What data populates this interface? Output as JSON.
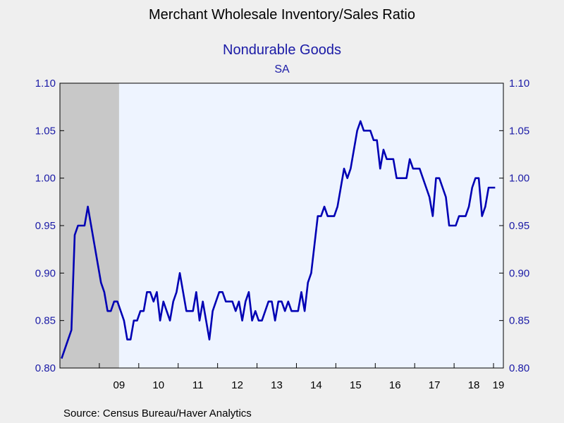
{
  "header": {
    "title": "Merchant Wholesale Inventory/Sales Ratio",
    "subtitle": "Nondurable Goods",
    "note": "SA"
  },
  "footer": {
    "source": "Source:  Census Bureau/Haver Analytics"
  },
  "colors": {
    "line": "#0000b4",
    "plot_background": "#eef4ff",
    "recession_shade": "#c8c8c8",
    "tick_label": "#1a1aa6"
  },
  "chart_data": {
    "type": "line",
    "title": "Merchant Wholesale Inventory/Sales Ratio",
    "subtitle": "Nondurable Goods",
    "note": "SA",
    "xlabel": "",
    "ylabel": "",
    "ylim": [
      0.8,
      1.1
    ],
    "y_ticks": [
      "0.80",
      "0.85",
      "0.90",
      "0.95",
      "1.00",
      "1.05",
      "1.10"
    ],
    "y_tick_values": [
      0.8,
      0.85,
      0.9,
      0.95,
      1.0,
      1.05,
      1.1
    ],
    "x_tick_labels": [
      "09",
      "10",
      "11",
      "12",
      "13",
      "14",
      "15",
      "16",
      "17",
      "18",
      "19"
    ],
    "x_range": [
      "2008-01",
      "2019-03"
    ],
    "grid": false,
    "secondary_y_axis": true,
    "shaded_regions": [
      {
        "label": "recession",
        "start": "2008-01",
        "end": "2009-06"
      }
    ],
    "series": [
      {
        "start": "2008-01",
        "frequency": "monthly",
        "values": [
          0.81,
          0.82,
          0.83,
          0.84,
          0.94,
          0.95,
          0.95,
          0.95,
          0.97,
          0.95,
          0.93,
          0.91,
          0.89,
          0.88,
          0.86,
          0.86,
          0.87,
          0.87,
          0.86,
          0.85,
          0.83,
          0.83,
          0.85,
          0.85,
          0.86,
          0.86,
          0.88,
          0.88,
          0.87,
          0.88,
          0.85,
          0.87,
          0.86,
          0.85,
          0.87,
          0.88,
          0.9,
          0.88,
          0.86,
          0.86,
          0.86,
          0.88,
          0.85,
          0.87,
          0.85,
          0.83,
          0.86,
          0.87,
          0.88,
          0.88,
          0.87,
          0.87,
          0.87,
          0.86,
          0.87,
          0.85,
          0.87,
          0.88,
          0.85,
          0.86,
          0.85,
          0.85,
          0.86,
          0.87,
          0.87,
          0.85,
          0.87,
          0.87,
          0.86,
          0.87,
          0.86,
          0.86,
          0.86,
          0.88,
          0.86,
          0.89,
          0.9,
          0.93,
          0.96,
          0.96,
          0.97,
          0.96,
          0.96,
          0.96,
          0.97,
          0.99,
          1.01,
          1.0,
          1.01,
          1.03,
          1.05,
          1.06,
          1.05,
          1.05,
          1.05,
          1.04,
          1.04,
          1.01,
          1.03,
          1.02,
          1.02,
          1.02,
          1.0,
          1.0,
          1.0,
          1.0,
          1.02,
          1.01,
          1.01,
          1.01,
          1.0,
          0.99,
          0.98,
          0.96,
          1.0,
          1.0,
          0.99,
          0.98,
          0.95,
          0.95,
          0.95,
          0.96,
          0.96,
          0.96,
          0.97,
          0.99,
          1.0,
          1.0,
          0.96,
          0.97,
          0.99,
          0.99,
          0.99
        ]
      }
    ]
  }
}
